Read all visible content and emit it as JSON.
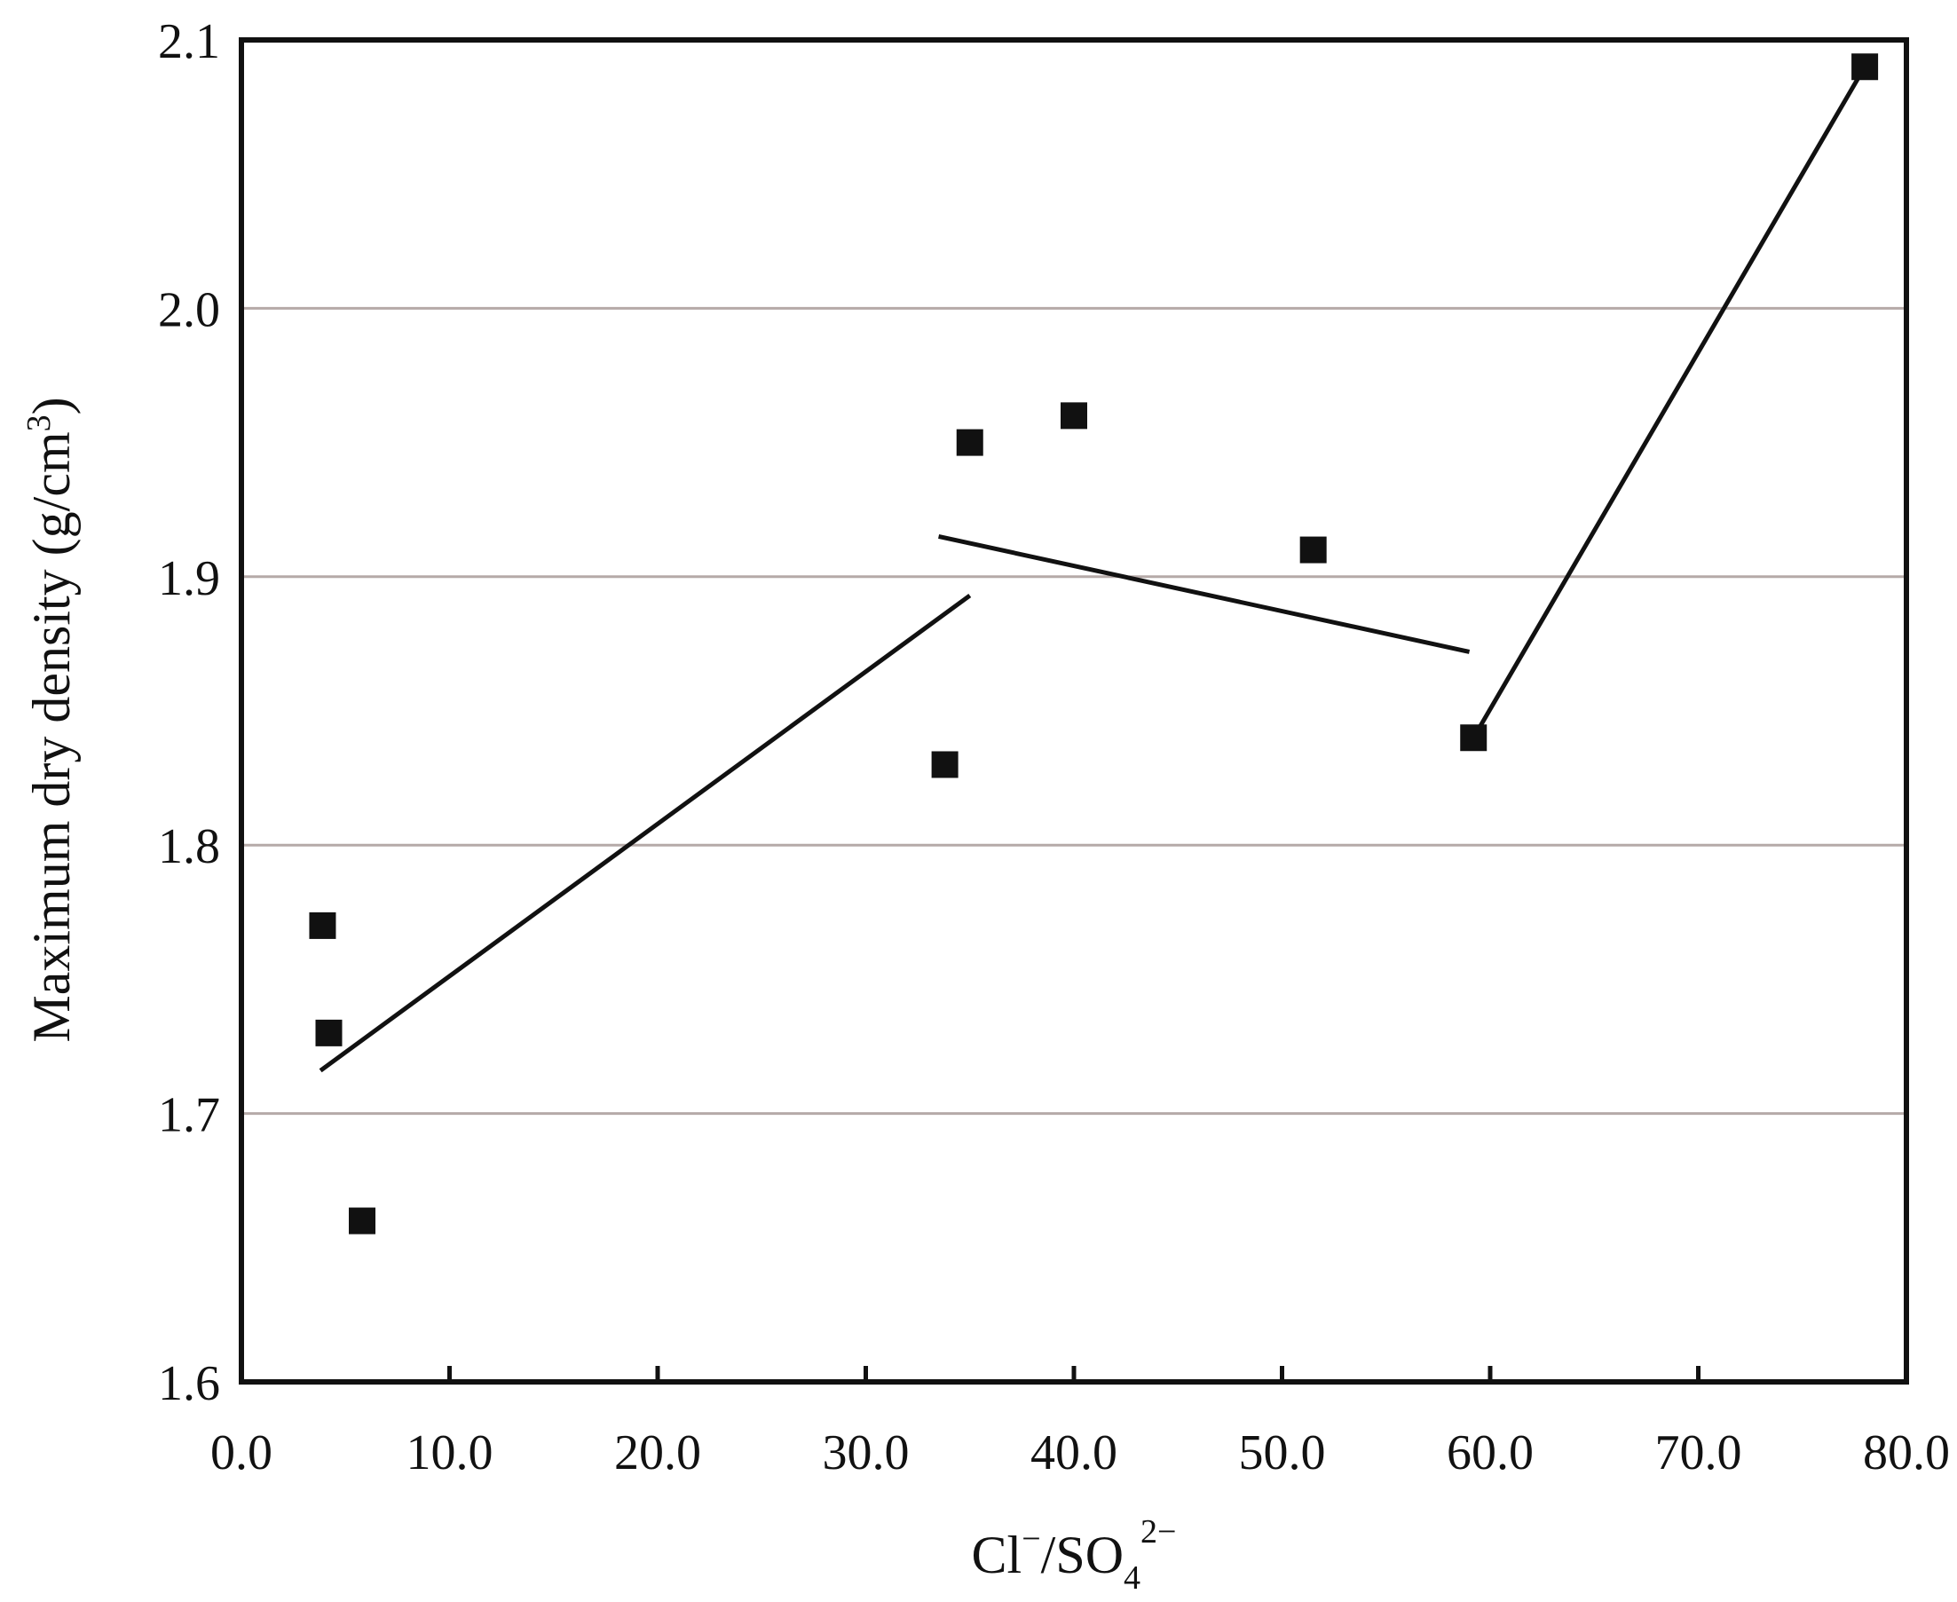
{
  "chart_data": {
    "type": "scatter",
    "xlabel": "Cl⁻/SO₄²⁻",
    "xlabel_parts": {
      "ion1": "Cl",
      "ion1_charge": "−",
      "sep": "/SO",
      "ion2_sub": "4",
      "ion2_charge": "2−"
    },
    "ylabel": "Maximum dry density (g/cm³)",
    "ylabel_parts": {
      "text": "Maximum dry density (g/cm",
      "sup": "3",
      "close": ")"
    },
    "xlim": [
      0,
      80
    ],
    "ylim": [
      1.6,
      2.1
    ],
    "x_ticks": [
      0,
      10,
      20,
      30,
      40,
      50,
      60,
      70,
      80
    ],
    "x_tick_labels": [
      "0.0",
      "10.0",
      "20.0",
      "30.0",
      "40.0",
      "50.0",
      "60.0",
      "70.0",
      "80.0"
    ],
    "y_ticks": [
      1.6,
      1.7,
      1.8,
      1.9,
      2.0,
      2.1
    ],
    "y_tick_labels": [
      "1.6",
      "1.7",
      "1.8",
      "1.9",
      "2.0",
      "2.1"
    ],
    "grid": "horizontal",
    "marker": "square",
    "points": [
      {
        "x": 3.9,
        "y": 1.77
      },
      {
        "x": 4.2,
        "y": 1.73
      },
      {
        "x": 5.8,
        "y": 1.66
      },
      {
        "x": 33.8,
        "y": 1.83
      },
      {
        "x": 35.0,
        "y": 1.95
      },
      {
        "x": 40.0,
        "y": 1.96
      },
      {
        "x": 51.5,
        "y": 1.91
      },
      {
        "x": 59.2,
        "y": 1.84
      },
      {
        "x": 78.0,
        "y": 2.09
      }
    ],
    "trend_lines": [
      {
        "x": [
          3.8,
          35.0
        ],
        "y": [
          1.716,
          1.893
        ]
      },
      {
        "x": [
          33.5,
          59.0
        ],
        "y": [
          1.915,
          1.872
        ]
      },
      {
        "x": [
          59.2,
          78.0
        ],
        "y": [
          1.84,
          2.09
        ]
      }
    ],
    "colors": {
      "marker": "#111111",
      "line": "#111111",
      "grid": "#b5aaa8",
      "frame": "#111111"
    }
  }
}
